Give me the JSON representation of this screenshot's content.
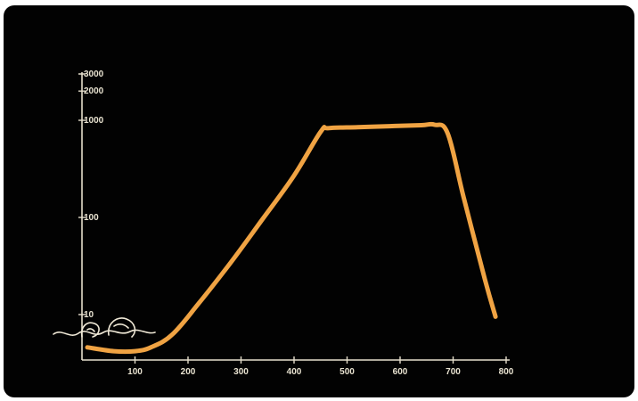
{
  "chart_data": {
    "type": "line",
    "title": "",
    "xlabel": "",
    "ylabel": "",
    "x_ticks": [
      100,
      200,
      300,
      400,
      500,
      600,
      700,
      800
    ],
    "y_ticks": [
      10,
      100,
      1000,
      2000,
      3000
    ],
    "y_tick_labels": [
      "10",
      "100",
      "1000",
      "2000",
      "3000"
    ],
    "xlim": [
      0,
      800
    ],
    "y_scale": "log",
    "ylim": [
      4,
      3000
    ],
    "grid": false,
    "series": [
      {
        "color": "#f0a343",
        "x": [
          10,
          60,
          100,
          130,
          170,
          220,
          280,
          340,
          400,
          450,
          465,
          520,
          580,
          640,
          665,
          690,
          720,
          760,
          780
        ],
        "y": [
          4.6,
          4.2,
          4.2,
          4.6,
          6.2,
          13,
          34,
          95,
          270,
          760,
          830,
          850,
          870,
          890,
          900,
          730,
          160,
          23,
          9.5
        ]
      }
    ]
  }
}
